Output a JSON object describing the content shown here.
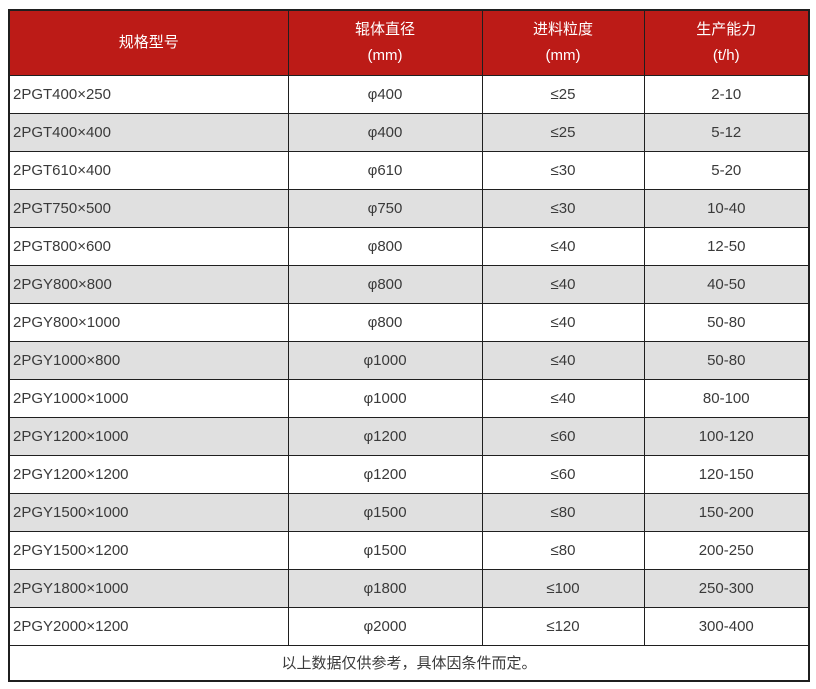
{
  "colors": {
    "header_bg": "#bc1b17",
    "header_text": "#ffffff",
    "row_alt_bg": "#e0e0e0",
    "row_bg": "#ffffff",
    "border": "#1f1f1f",
    "body_text": "#3a3a3a"
  },
  "table": {
    "columns": [
      {
        "title": "规格型号",
        "unit": ""
      },
      {
        "title": "辊体直径",
        "unit": "(mm)"
      },
      {
        "title": "进料粒度",
        "unit": "(mm)"
      },
      {
        "title": "生产能力",
        "unit": "(t/h)"
      }
    ],
    "rows": [
      {
        "model": "2PGT400×250",
        "diameter": "φ400",
        "feed": "≤25",
        "capacity": "2-10"
      },
      {
        "model": "2PGT400×400",
        "diameter": "φ400",
        "feed": "≤25",
        "capacity": "5-12"
      },
      {
        "model": "2PGT610×400",
        "diameter": "φ610",
        "feed": "≤30",
        "capacity": "5-20"
      },
      {
        "model": "2PGT750×500",
        "diameter": "φ750",
        "feed": "≤30",
        "capacity": "10-40"
      },
      {
        "model": "2PGT800×600",
        "diameter": "φ800",
        "feed": "≤40",
        "capacity": "12-50"
      },
      {
        "model": "2PGY800×800",
        "diameter": "φ800",
        "feed": "≤40",
        "capacity": "40-50"
      },
      {
        "model": "2PGY800×1000",
        "diameter": "φ800",
        "feed": "≤40",
        "capacity": "50-80"
      },
      {
        "model": "2PGY1000×800",
        "diameter": "φ1000",
        "feed": "≤40",
        "capacity": "50-80"
      },
      {
        "model": "2PGY1000×1000",
        "diameter": "φ1000",
        "feed": "≤40",
        "capacity": "80-100"
      },
      {
        "model": "2PGY1200×1000",
        "diameter": "φ1200",
        "feed": "≤60",
        "capacity": "100-120"
      },
      {
        "model": "2PGY1200×1200",
        "diameter": "φ1200",
        "feed": "≤60",
        "capacity": "120-150"
      },
      {
        "model": "2PGY1500×1000",
        "diameter": "φ1500",
        "feed": "≤80",
        "capacity": "150-200"
      },
      {
        "model": "2PGY1500×1200",
        "diameter": "φ1500",
        "feed": "≤80",
        "capacity": "200-250"
      },
      {
        "model": "2PGY1800×1000",
        "diameter": "φ1800",
        "feed": "≤100",
        "capacity": "250-300"
      },
      {
        "model": "2PGY2000×1200",
        "diameter": "φ2000",
        "feed": "≤120",
        "capacity": "300-400"
      }
    ],
    "footer_note": "以上数据仅供参考，具体因条件而定。"
  }
}
